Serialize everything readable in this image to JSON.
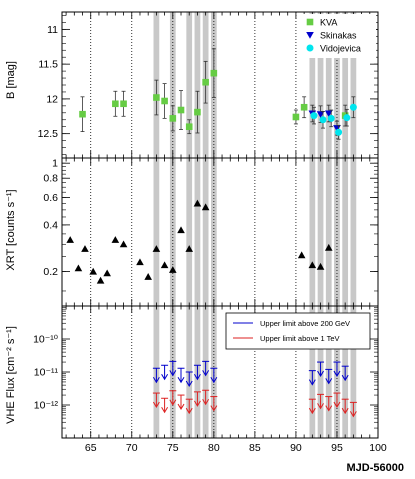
{
  "chart_data": [
    {
      "type": "scatter",
      "panel": "optical",
      "ylabel": "B [mag]",
      "y_inverted": true,
      "xlim": [
        61.5,
        100
      ],
      "ylim": [
        10.75,
        12.85
      ],
      "yticks": [
        {
          "v": 11,
          "label": "11"
        },
        {
          "v": 11.5,
          "label": "11.5"
        },
        {
          "v": 12,
          "label": "12"
        },
        {
          "v": 12.5,
          "label": "12.5"
        }
      ],
      "legend_position": "top-right",
      "series": [
        {
          "name": "KVA",
          "color": "#66cc44",
          "marker": "square",
          "points": [
            {
              "x": 64.0,
              "y": 12.22,
              "e": 0.25
            },
            {
              "x": 68.0,
              "y": 12.07,
              "e": 0.18
            },
            {
              "x": 69.0,
              "y": 12.07,
              "e": 0.18
            },
            {
              "x": 73.0,
              "y": 11.98,
              "e": 0.25
            },
            {
              "x": 74.0,
              "y": 12.03,
              "e": 0.25
            },
            {
              "x": 75.0,
              "y": 12.28,
              "e": 0.18
            },
            {
              "x": 76.0,
              "y": 12.16,
              "e": 0.28
            },
            {
              "x": 77.0,
              "y": 12.4,
              "e": 0.1
            },
            {
              "x": 78.0,
              "y": 12.19,
              "e": 0.3
            },
            {
              "x": 79.0,
              "y": 11.76,
              "e": 0.3
            },
            {
              "x": 80.0,
              "y": 11.63,
              "e": 0.35
            },
            {
              "x": 90.0,
              "y": 12.26,
              "e": 0.1
            },
            {
              "x": 91.0,
              "y": 12.12,
              "e": 0.15
            },
            {
              "x": 96.0,
              "y": 12.24,
              "e": 0.15
            }
          ]
        },
        {
          "name": "Skinakas",
          "color": "#0000cc",
          "marker": "triangle-down",
          "points": [
            {
              "x": 92.0,
              "y": 12.21,
              "e": 0.12
            },
            {
              "x": 93.0,
              "y": 12.22,
              "e": 0.12
            },
            {
              "x": 94.0,
              "y": 12.21,
              "e": 0.12
            },
            {
              "x": 95.0,
              "y": 12.42,
              "e": 0.1
            }
          ]
        },
        {
          "name": "Vidojevica",
          "color": "#00e5ee",
          "marker": "circle",
          "points": [
            {
              "x": 92.2,
              "y": 12.24,
              "e": 0.12
            },
            {
              "x": 93.3,
              "y": 12.3,
              "e": 0.12
            },
            {
              "x": 94.3,
              "y": 12.28,
              "e": 0.12
            },
            {
              "x": 95.2,
              "y": 12.48,
              "e": 0.1
            },
            {
              "x": 96.2,
              "y": 12.27,
              "e": 0.12
            },
            {
              "x": 97.0,
              "y": 12.12,
              "e": 0.15
            }
          ]
        }
      ]
    },
    {
      "type": "scatter",
      "panel": "xrt",
      "ylabel": "XRT [counts s⁻¹]",
      "y_scale": "log",
      "xlim": [
        61.5,
        100
      ],
      "ylim": [
        0.12,
        1.08
      ],
      "yticks": [
        {
          "v": 0.2,
          "label": "0.2"
        },
        {
          "v": 0.4,
          "label": "0.4"
        },
        {
          "v": 0.6,
          "label": "0.6"
        },
        {
          "v": 0.8,
          "label": "0.8"
        },
        {
          "v": 1.0,
          "label": "1"
        }
      ],
      "series": [
        {
          "name": "",
          "color": "#000000",
          "marker": "triangle-up",
          "points": [
            {
              "x": 62.5,
              "y": 0.32
            },
            {
              "x": 63.5,
              "y": 0.21
            },
            {
              "x": 64.3,
              "y": 0.28
            },
            {
              "x": 65.3,
              "y": 0.2
            },
            {
              "x": 66.2,
              "y": 0.175
            },
            {
              "x": 67.0,
              "y": 0.195
            },
            {
              "x": 68.0,
              "y": 0.32
            },
            {
              "x": 69.0,
              "y": 0.3
            },
            {
              "x": 71.0,
              "y": 0.23
            },
            {
              "x": 72.0,
              "y": 0.185
            },
            {
              "x": 73.0,
              "y": 0.28
            },
            {
              "x": 74.0,
              "y": 0.22
            },
            {
              "x": 75.0,
              "y": 0.205
            },
            {
              "x": 76.0,
              "y": 0.37
            },
            {
              "x": 77.0,
              "y": 0.28
            },
            {
              "x": 78.0,
              "y": 0.55
            },
            {
              "x": 79.0,
              "y": 0.52
            },
            {
              "x": 90.7,
              "y": 0.255
            },
            {
              "x": 92.0,
              "y": 0.22
            },
            {
              "x": 93.0,
              "y": 0.215
            },
            {
              "x": 94.0,
              "y": 0.285
            }
          ]
        }
      ]
    },
    {
      "type": "scatter",
      "panel": "vhe",
      "ylabel": "VHE Flux [cm⁻² s⁻¹]",
      "y_scale": "log",
      "xlim": [
        61.5,
        100
      ],
      "ylim": [
        1e-13,
        1e-09
      ],
      "yticks": [
        {
          "v": 1e-12,
          "label": "10⁻¹²"
        },
        {
          "v": 1e-11,
          "label": "10⁻¹¹"
        },
        {
          "v": 1e-10,
          "label": "10⁻¹⁰"
        }
      ],
      "legend_position": "top-right",
      "series": [
        {
          "name": "Upper limit above 200 GeV",
          "color": "#0000cc",
          "marker": "upper-limit",
          "points": [
            {
              "x": 73.0,
              "y": 1.3e-11
            },
            {
              "x": 74.0,
              "y": 1.6e-11
            },
            {
              "x": 75.0,
              "y": 2.1e-11
            },
            {
              "x": 76.0,
              "y": 1.3e-11
            },
            {
              "x": 77.0,
              "y": 1e-11
            },
            {
              "x": 78.0,
              "y": 1.6e-11
            },
            {
              "x": 79.0,
              "y": 2.1e-11
            },
            {
              "x": 80.0,
              "y": 1.3e-11
            },
            {
              "x": 92.0,
              "y": 1.1e-11
            },
            {
              "x": 93.0,
              "y": 2e-11
            },
            {
              "x": 94.0,
              "y": 1.2e-11
            },
            {
              "x": 95.0,
              "y": 2e-11
            },
            {
              "x": 96.0,
              "y": 1.5e-11
            }
          ]
        },
        {
          "name": "Upper limit above 1 TeV",
          "color": "#dd2222",
          "marker": "upper-limit",
          "points": [
            {
              "x": 73.0,
              "y": 2.3e-12
            },
            {
              "x": 74.0,
              "y": 1.6e-12
            },
            {
              "x": 75.0,
              "y": 2.7e-12
            },
            {
              "x": 76.0,
              "y": 2e-12
            },
            {
              "x": 77.0,
              "y": 1.5e-12
            },
            {
              "x": 78.0,
              "y": 2.5e-12
            },
            {
              "x": 79.0,
              "y": 2.8e-12
            },
            {
              "x": 80.0,
              "y": 1.8e-12
            },
            {
              "x": 92.0,
              "y": 1.5e-12
            },
            {
              "x": 93.0,
              "y": 2.1e-12
            },
            {
              "x": 94.0,
              "y": 1.8e-12
            },
            {
              "x": 95.0,
              "y": 2.3e-12
            },
            {
              "x": 96.0,
              "y": 1.5e-12
            },
            {
              "x": 97.0,
              "y": 1.2e-12
            }
          ]
        }
      ]
    }
  ],
  "xaxis": {
    "label": "MJD-56000",
    "ticks": [
      {
        "v": 65,
        "label": "65"
      },
      {
        "v": 70,
        "label": "70"
      },
      {
        "v": 75,
        "label": "75"
      },
      {
        "v": 80,
        "label": "80"
      },
      {
        "v": 85,
        "label": "85"
      },
      {
        "v": 90,
        "label": "90"
      },
      {
        "v": 95,
        "label": "95"
      },
      {
        "v": 100,
        "label": "100"
      }
    ],
    "dotted_gridlines": [
      65,
      70,
      75,
      80,
      85,
      90,
      95
    ]
  },
  "shaded_days": [
    73,
    75,
    77,
    78,
    79,
    80,
    92,
    93,
    94,
    95,
    96,
    97
  ]
}
